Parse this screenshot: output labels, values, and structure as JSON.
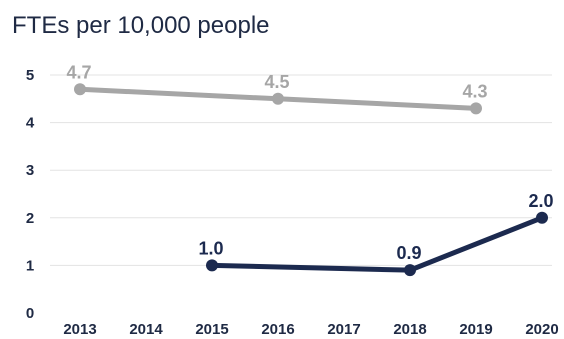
{
  "chart_data": {
    "type": "line",
    "title": "FTEs per 10,000 people",
    "xlabel": "",
    "ylabel": "",
    "categories": [
      "2013",
      "2014",
      "2015",
      "2016",
      "2017",
      "2018",
      "2019",
      "2020"
    ],
    "ylim": [
      0,
      5
    ],
    "yticks": [
      "0",
      "1",
      "2",
      "3",
      "4",
      "5"
    ],
    "grid": true,
    "series": [
      {
        "color": "#a6a6a6",
        "values": [
          4.7,
          null,
          null,
          4.5,
          null,
          null,
          4.3,
          null
        ],
        "labels": [
          "4.7",
          null,
          null,
          "4.5",
          null,
          null,
          "4.3",
          null
        ]
      },
      {
        "color": "#1c2a4f",
        "values": [
          null,
          null,
          1.0,
          null,
          null,
          0.9,
          null,
          2.0
        ],
        "labels": [
          null,
          null,
          "1.0",
          null,
          null,
          "0.9",
          null,
          "2.0"
        ]
      }
    ]
  }
}
